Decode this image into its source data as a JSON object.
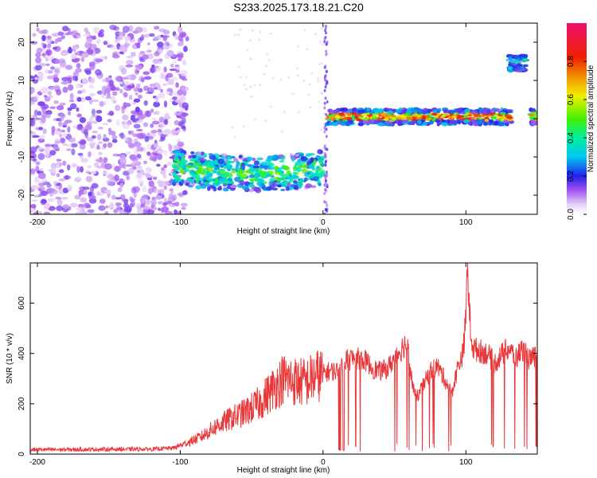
{
  "title": "S233.2025.173.18.21.C20",
  "chart_data": [
    {
      "type": "heatmap",
      "xlabel": "Height of straight line (km)",
      "ylabel": "Frequency (Hz)",
      "xlim": [
        -205,
        150
      ],
      "ylim": [
        -25,
        25
      ],
      "xticks": [
        -200,
        -100,
        0,
        100
      ],
      "yticks": [
        -20,
        -10,
        0,
        10,
        20
      ],
      "colorbar": {
        "label": "Normalized spectral amplitude",
        "range": [
          0,
          1
        ],
        "ticks": [
          0.0,
          0.2,
          0.4,
          0.6,
          0.8
        ]
      },
      "features": [
        {
          "x_range": [
            -205,
            -95
          ],
          "freq_range": [
            -25,
            24
          ],
          "amplitude": 0.1
        },
        {
          "x_range": [
            -105,
            0
          ],
          "freq_center_start": -12.5,
          "freq_center_mid": -16,
          "freq_center_end": -13,
          "amplitude": 0.45
        },
        {
          "x_range": [
            3,
            132
          ],
          "freq_center": 0.5,
          "amplitude": 0.9
        },
        {
          "x_range": [
            130,
            142
          ],
          "freq_center": 14.5,
          "amplitude": 0.45
        },
        {
          "x_range": [
            145,
            150
          ],
          "freq_center": 0.5,
          "amplitude": 0.85
        }
      ]
    },
    {
      "type": "line",
      "xlabel": "Height of straight line (km)",
      "ylabel": "SNR (10 * v/v)",
      "xlim": [
        -205,
        150
      ],
      "ylim": [
        0,
        760
      ],
      "xticks": [
        -200,
        -100,
        0,
        100
      ],
      "yticks": [
        0,
        200,
        400,
        600
      ],
      "series": [
        {
          "color": "#e8383a",
          "x": [
            -205,
            -180,
            -150,
            -120,
            -105,
            -95,
            -85,
            -75,
            -65,
            -55,
            -45,
            -35,
            -28,
            -20,
            -12,
            -5,
            0,
            5,
            10,
            12,
            15,
            20,
            25,
            30,
            35,
            40,
            45,
            50,
            55,
            58,
            60,
            62,
            65,
            70,
            75,
            80,
            85,
            90,
            95,
            98,
            100,
            101,
            103,
            105,
            110,
            115,
            120,
            125,
            130,
            135,
            140,
            145,
            150
          ],
          "values": [
            18,
            18,
            19,
            20,
            24,
            45,
            70,
            110,
            140,
            165,
            200,
            260,
            300,
            290,
            285,
            310,
            320,
            330,
            330,
            340,
            370,
            380,
            380,
            370,
            340,
            330,
            340,
            380,
            420,
            440,
            400,
            300,
            220,
            270,
            330,
            350,
            300,
            240,
            360,
            400,
            540,
            750,
            510,
            420,
            410,
            400,
            360,
            395,
            420,
            380,
            420,
            370,
            400
          ]
        }
      ]
    }
  ]
}
